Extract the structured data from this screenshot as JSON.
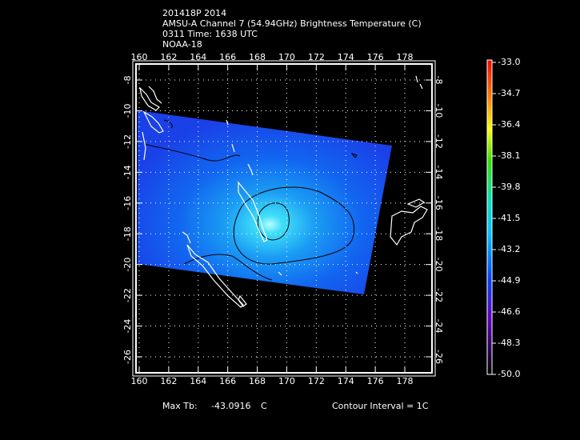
{
  "header": {
    "lines": [
      "201418P 2014",
      "AMSU-A Channel 7 (54.94GHz) Brightness Temperature (C)",
      "0311 Time: 1638 UTC",
      "NOAA-18"
    ]
  },
  "map": {
    "lon_ticks": [
      160,
      162,
      164,
      166,
      168,
      170,
      172,
      174,
      176,
      178
    ],
    "lat_ticks": [
      -8,
      -10,
      -12,
      -14,
      -16,
      -18,
      -20,
      -22,
      -24,
      -26
    ]
  },
  "colorbar": {
    "labels": [
      "-33.0",
      "-34.7",
      "-36.4",
      "-38.1",
      "-39.8",
      "-41.5",
      "-43.2",
      "-44.9",
      "-46.6",
      "-48.3",
      "-50.0"
    ]
  },
  "footer": {
    "max_label": "Max Tb:",
    "max_value": "-43.0916",
    "max_unit": "C",
    "contour": "Contour Interval = 1C"
  }
}
